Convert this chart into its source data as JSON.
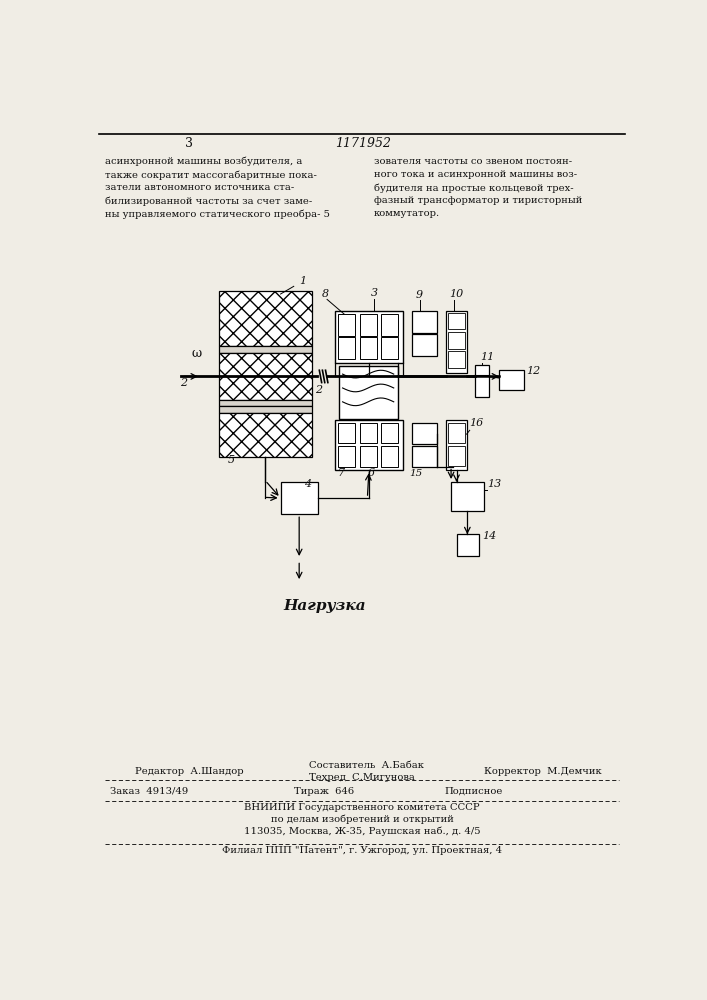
{
  "page_color": "#f0ede5",
  "text_color": "#111111",
  "title_number": "3",
  "patent_number": "1171952",
  "top_left_text": [
    "асинхронной машины возбудителя, а",
    "также сократит массогабаритные пока-",
    "затели автономного источника ста-",
    "билизированной частоты за счет заме-",
    "ны управляемого статического преобра- 5"
  ],
  "top_right_text": [
    "зователя частоты со звеном постоян-",
    "ного тока и асинхронной машины воз-",
    "будителя на простые кольцевой трех-",
    "фазный трансформатор и тиристорный",
    "коммутатор."
  ],
  "nagr_label": "Нагрузка"
}
